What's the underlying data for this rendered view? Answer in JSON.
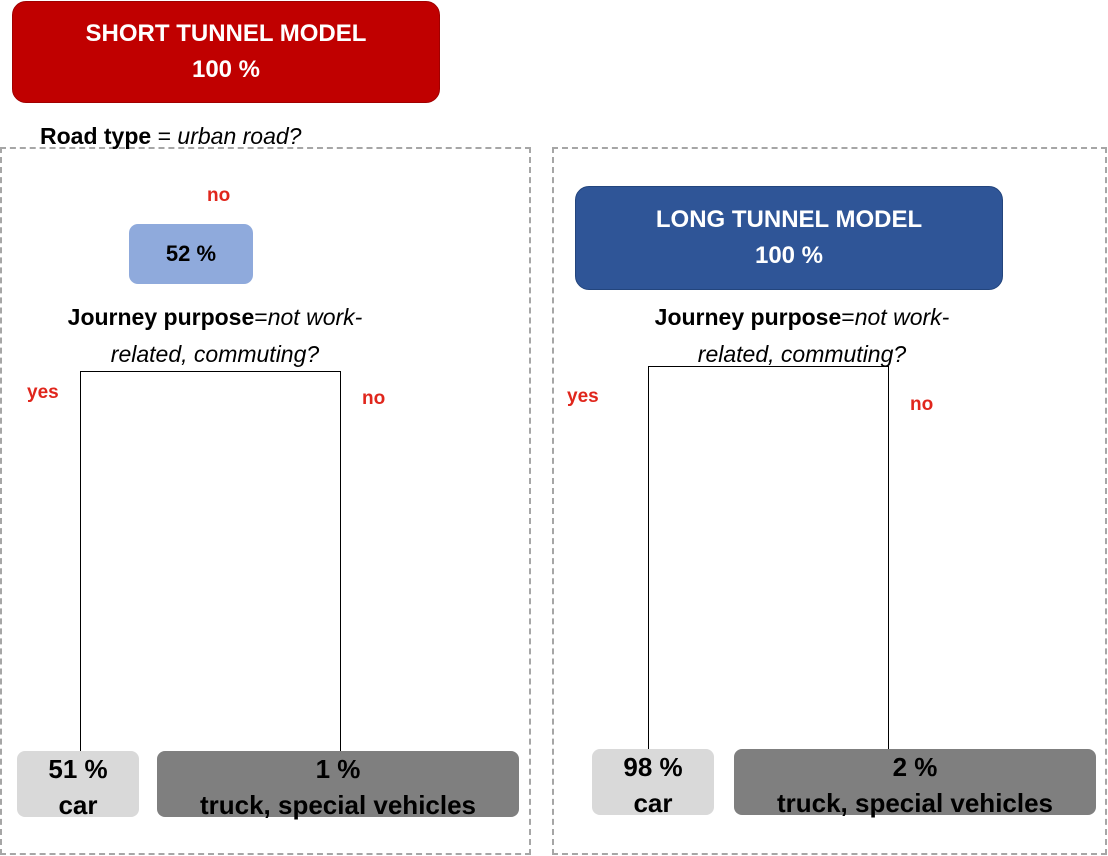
{
  "short_model": {
    "root": {
      "title": "SHORT TUNNEL MODEL",
      "percent": "100 %"
    },
    "split1": {
      "variable": "Road type",
      "operator": " = ",
      "condition": "urban road?"
    },
    "split1_no_label": "no",
    "node_no": {
      "percent": "52 %"
    },
    "split2": {
      "variable": "Journey purpose",
      "operator": "=",
      "condition_line1": "not work-",
      "condition_line2": "related, commuting?"
    },
    "split2_yes_label": "yes",
    "split2_no_label": "no",
    "leaf_yes": {
      "percent": "51 %",
      "label": "car"
    },
    "leaf_no": {
      "percent": "1 %",
      "label": "truck, special vehicles"
    }
  },
  "long_model": {
    "root": {
      "title": "LONG TUNNEL MODEL",
      "percent": "100 %"
    },
    "split": {
      "variable": "Journey purpose",
      "operator": "=",
      "condition_line1": "not work-",
      "condition_line2": "related, commuting?"
    },
    "split_yes_label": "yes",
    "split_no_label": "no",
    "leaf_yes": {
      "percent": "98 %",
      "label": "car"
    },
    "leaf_no": {
      "percent": "2 %",
      "label": "truck, special vehicles"
    }
  },
  "colors": {
    "short_root": "#c00000",
    "long_root": "#2f5597",
    "intermediate_node": "#8faadc",
    "leaf_car": "#d9d9d9",
    "leaf_truck": "#7f7f7f",
    "edge_label": "#e0261c",
    "panel_border": "#a6a6a6"
  }
}
